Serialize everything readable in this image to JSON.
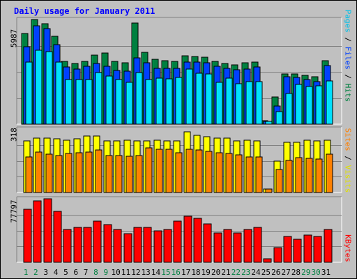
{
  "title": "Daily usage for January 2011",
  "colors": {
    "background": "#c0c0c0",
    "plot": "#c0c0c0",
    "hits": "#008040",
    "files": "#0040ff",
    "pages": "#00e0ff",
    "visits": "#ffff00",
    "sites": "#ff8000",
    "kbytes": "#ff0000",
    "title": "#0000ff",
    "weekday_label": "#000000",
    "weekend_label": "#008040"
  },
  "chart_data": [
    {
      "type": "bar",
      "panel": "hits-files-pages",
      "y_max_label": "5987",
      "ylim": [
        0,
        5987
      ],
      "right_label": {
        "pages": "Pages",
        "sep1": " / ",
        "files": "Files",
        "sep2": " / ",
        "hits": "Hits"
      },
      "categories": [
        "1",
        "2",
        "3",
        "4",
        "5",
        "6",
        "7",
        "8",
        "9",
        "10",
        "11",
        "12",
        "13",
        "14",
        "15",
        "16",
        "17",
        "18",
        "19",
        "20",
        "21",
        "22",
        "23",
        "24",
        "25",
        "26",
        "27",
        "28",
        "29",
        "30",
        "31"
      ],
      "weekend_days": [
        "1",
        "2",
        "8",
        "9",
        "15",
        "16",
        "22",
        "23",
        "29",
        "30"
      ],
      "series": [
        {
          "name": "Hits",
          "color": "hits",
          "values": [
            5180,
            5987,
            5730,
            5010,
            3580,
            3460,
            3580,
            3960,
            4060,
            3580,
            3520,
            5800,
            4120,
            3700,
            3640,
            3580,
            3900,
            3880,
            3850,
            3580,
            3460,
            3400,
            3520,
            3560,
            180,
            1560,
            2860,
            2880,
            2780,
            2720,
            3630
          ]
        },
        {
          "name": "Files",
          "color": "files",
          "values": [
            4450,
            5610,
            5450,
            4540,
            3280,
            3170,
            3320,
            3490,
            3310,
            3080,
            3030,
            3790,
            3510,
            3200,
            3210,
            3200,
            3540,
            3550,
            3500,
            3320,
            3190,
            3100,
            3150,
            3270,
            170,
            1050,
            2720,
            2670,
            2550,
            2450,
            3370
          ]
        },
        {
          "name": "Pages",
          "color": "pages",
          "values": [
            3560,
            4230,
            4160,
            3550,
            2570,
            2550,
            2570,
            2940,
            2740,
            2570,
            2410,
            2940,
            2560,
            2630,
            2600,
            2670,
            3140,
            2910,
            2860,
            2380,
            2620,
            2300,
            2430,
            2450,
            150,
            720,
            1760,
            2260,
            2160,
            2190,
            2480
          ]
        }
      ]
    },
    {
      "type": "bar",
      "panel": "visits-sites",
      "y_max_label": "318",
      "ylim": [
        0,
        318
      ],
      "right_label": {
        "sites": "Sites",
        "sep": " / ",
        "visits": "Visits"
      },
      "categories": [
        "1",
        "2",
        "3",
        "4",
        "5",
        "6",
        "7",
        "8",
        "9",
        "10",
        "11",
        "12",
        "13",
        "14",
        "15",
        "16",
        "17",
        "18",
        "19",
        "20",
        "21",
        "22",
        "23",
        "24",
        "25",
        "26",
        "27",
        "28",
        "29",
        "30",
        "31"
      ],
      "series": [
        {
          "name": "Visits",
          "color": "visits",
          "values": [
            257,
            272,
            272,
            270,
            262,
            270,
            282,
            283,
            259,
            257,
            261,
            257,
            257,
            263,
            257,
            258,
            303,
            288,
            281,
            271,
            271,
            258,
            263,
            260,
            18,
            157,
            252,
            252,
            262,
            260,
            262
          ]
        },
        {
          "name": "Sites",
          "color": "sites",
          "values": [
            178,
            201,
            192,
            184,
            196,
            200,
            204,
            213,
            186,
            186,
            182,
            185,
            224,
            215,
            218,
            199,
            217,
            213,
            207,
            199,
            196,
            187,
            178,
            178,
            18,
            114,
            162,
            174,
            172,
            168,
            193
          ]
        }
      ]
    },
    {
      "type": "bar",
      "panel": "kbytes",
      "y_max_label": "77797",
      "ylim": [
        0,
        77797
      ],
      "right_label": {
        "kbytes": "KBytes"
      },
      "categories": [
        "1",
        "2",
        "3",
        "4",
        "5",
        "6",
        "7",
        "8",
        "9",
        "10",
        "11",
        "12",
        "13",
        "14",
        "15",
        "16",
        "17",
        "18",
        "19",
        "20",
        "21",
        "22",
        "23",
        "24",
        "25",
        "26",
        "27",
        "28",
        "29",
        "30",
        "31"
      ],
      "series": [
        {
          "name": "KBytes",
          "color": "kbytes",
          "values": [
            65100,
            75100,
            77797,
            62100,
            40100,
            43100,
            43100,
            50100,
            46100,
            40100,
            35100,
            43100,
            43100,
            38100,
            40100,
            50100,
            56100,
            54100,
            47100,
            36100,
            40100,
            36100,
            40100,
            43100,
            4000,
            18000,
            32000,
            28000,
            33000,
            32000,
            40100
          ]
        }
      ]
    }
  ]
}
